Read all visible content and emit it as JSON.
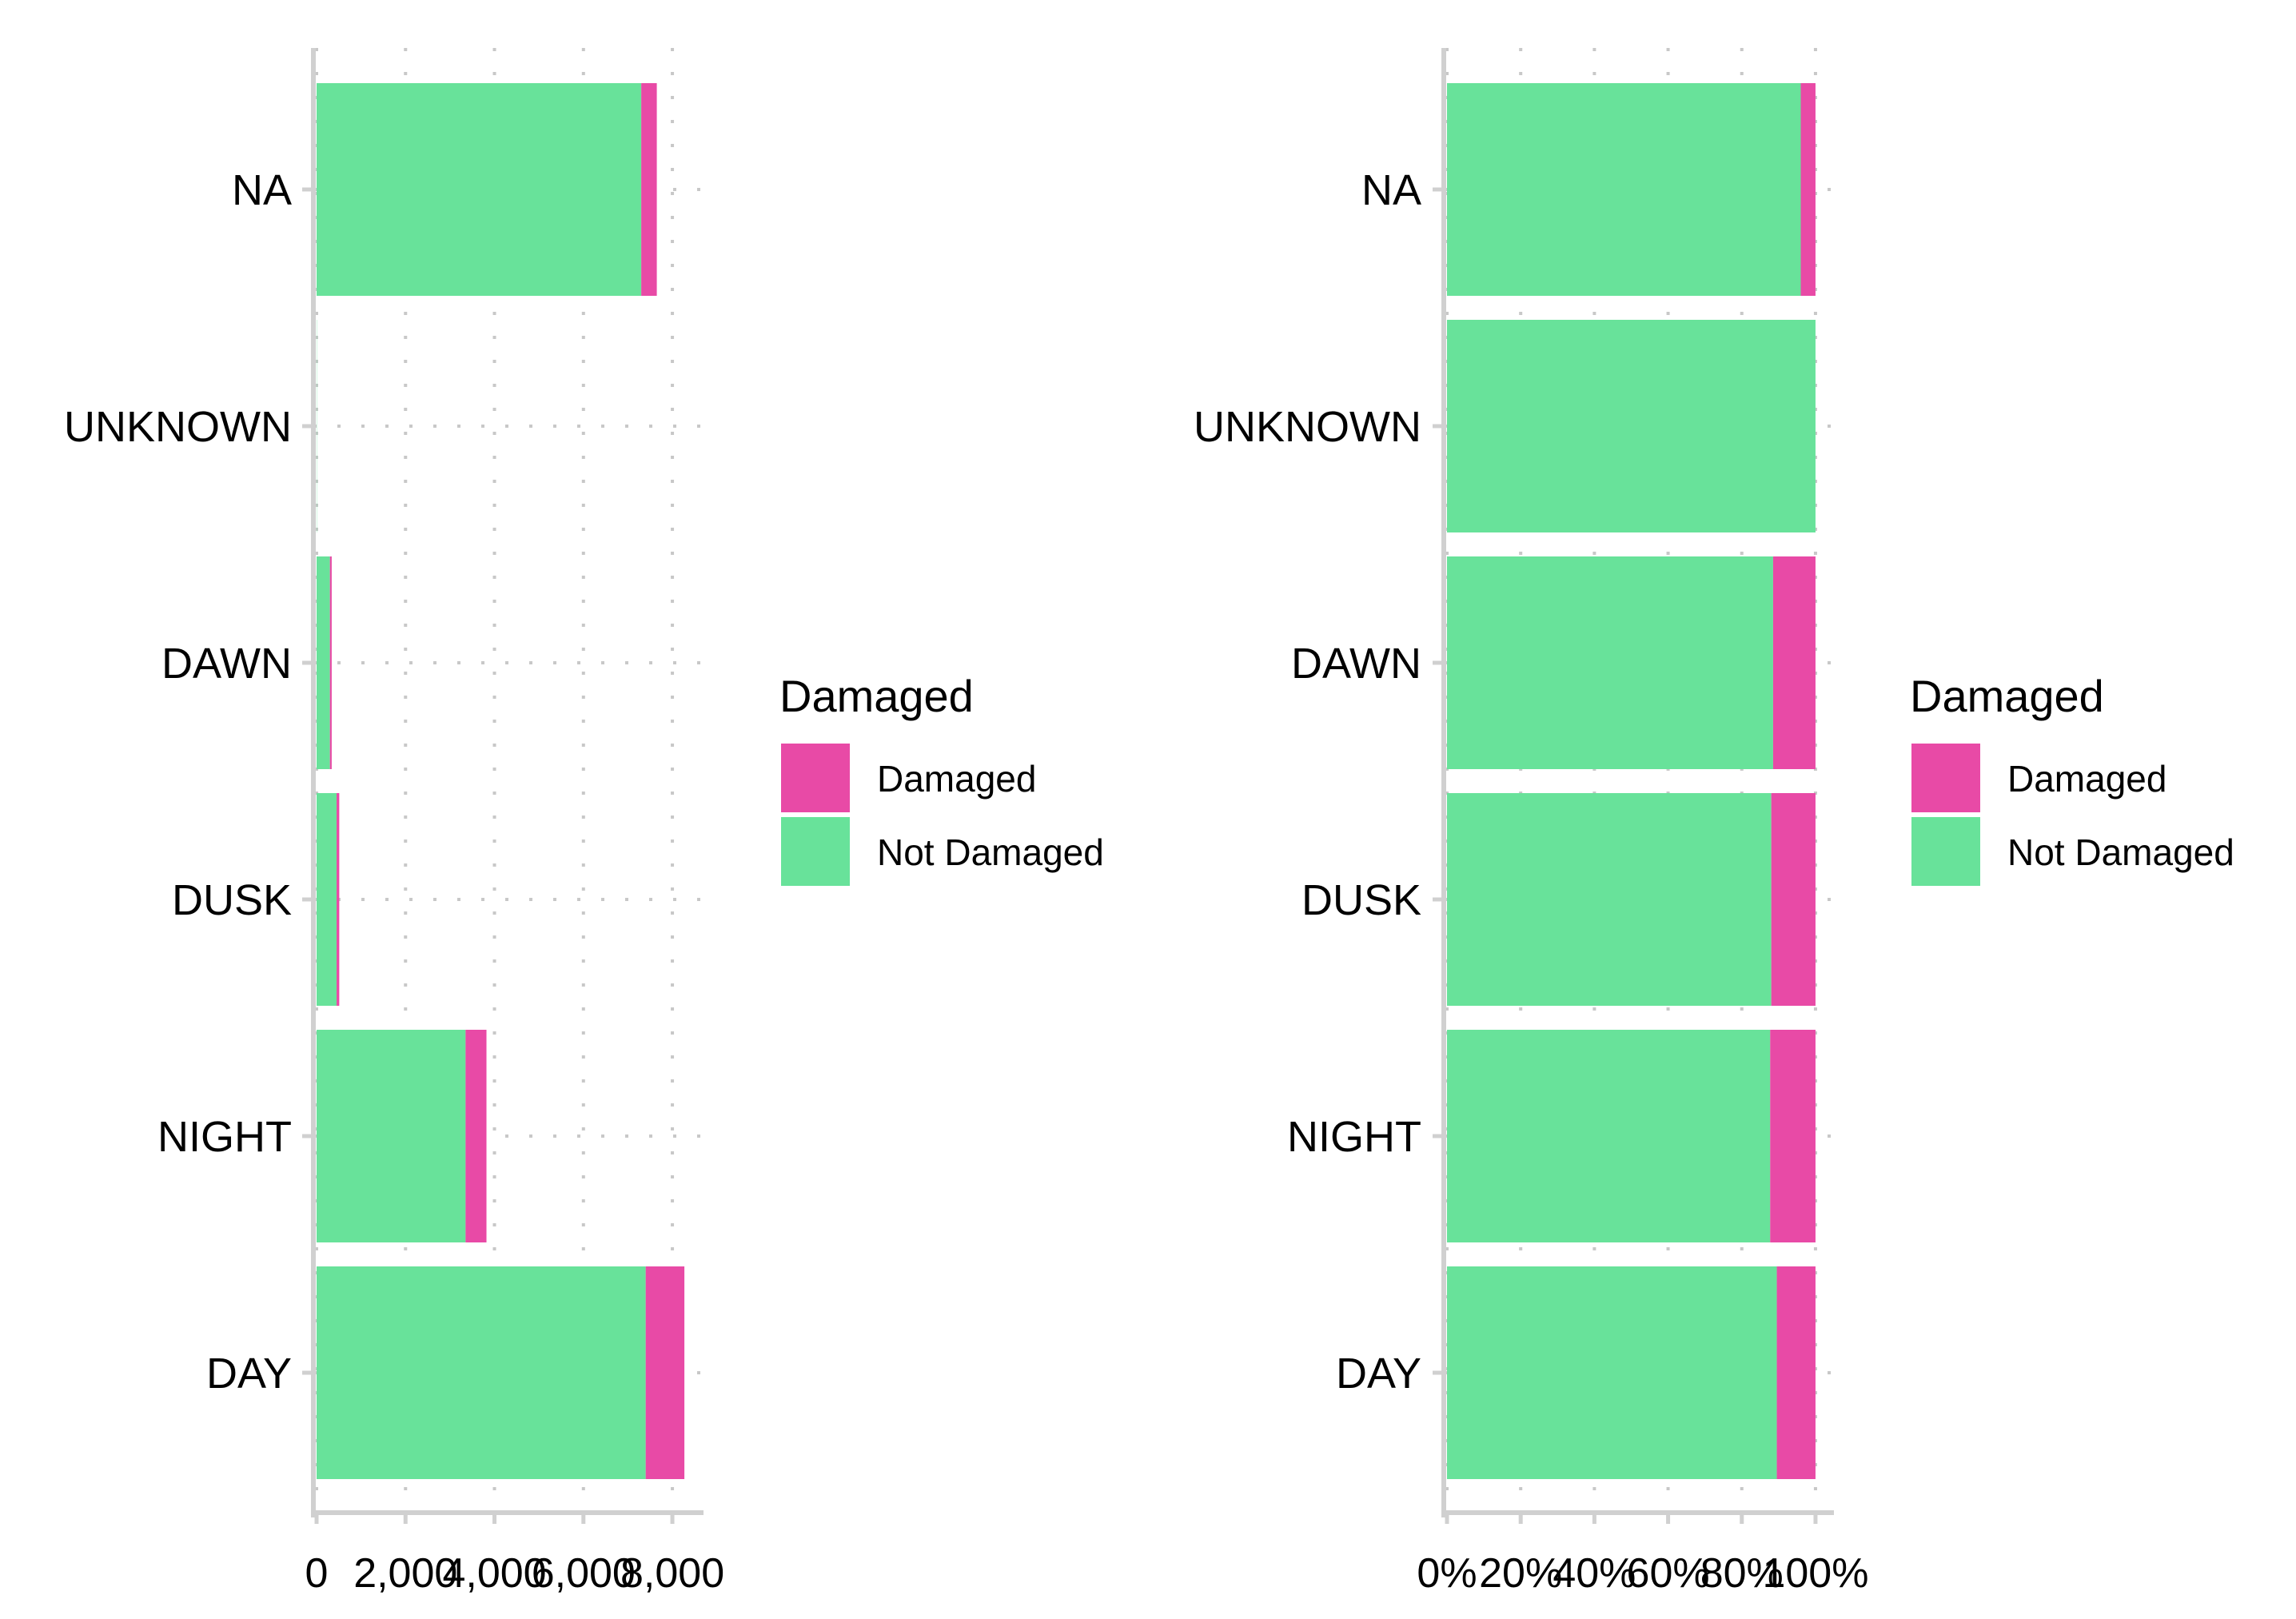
{
  "colors": {
    "damaged": "#E84AA6",
    "not_damaged": "#68E29A",
    "grid": "#C8C8C8",
    "axis": "#D0D0D0"
  },
  "chart_data": [
    {
      "type": "bar",
      "orientation": "horizontal",
      "stacked": true,
      "categories": [
        "NA",
        "UNKNOWN",
        "DAWN",
        "DUSK",
        "NIGHT",
        "DAY"
      ],
      "series": [
        {
          "name": "Not Damaged",
          "color": "#68E29A",
          "values": [
            7300,
            5,
            300,
            450,
            3350,
            7400
          ]
        },
        {
          "name": "Damaged",
          "color": "#E84AA6",
          "values": [
            350,
            0,
            40,
            60,
            470,
            870
          ]
        }
      ],
      "xlim": [
        0,
        8700
      ],
      "x_ticks": [
        0,
        2000,
        4000,
        6000,
        8000
      ],
      "x_tick_labels": [
        "0",
        "2,000",
        "4,000",
        "6,000",
        "8,000"
      ],
      "grid": true,
      "legend": {
        "title": "Damaged",
        "entries": [
          "Damaged",
          "Not Damaged"
        ],
        "position": "right"
      }
    },
    {
      "type": "bar",
      "orientation": "horizontal",
      "stacked": true,
      "percent": true,
      "categories": [
        "NA",
        "UNKNOWN",
        "DAWN",
        "DUSK",
        "NIGHT",
        "DAY"
      ],
      "series": [
        {
          "name": "Not Damaged",
          "color": "#68E29A",
          "values": [
            0.96,
            1.0,
            0.885,
            0.88,
            0.877,
            0.895
          ]
        },
        {
          "name": "Damaged",
          "color": "#E84AA6",
          "values": [
            0.04,
            0.0,
            0.115,
            0.12,
            0.123,
            0.105
          ]
        }
      ],
      "xlim": [
        0,
        1.05
      ],
      "x_ticks": [
        0,
        0.2,
        0.4,
        0.6,
        0.8,
        1.0
      ],
      "x_tick_labels": [
        "0%",
        "20%",
        "40%",
        "60%",
        "80%",
        "100%"
      ],
      "grid": true,
      "legend": {
        "title": "Damaged",
        "entries": [
          "Damaged",
          "Not Damaged"
        ],
        "position": "right"
      }
    }
  ]
}
